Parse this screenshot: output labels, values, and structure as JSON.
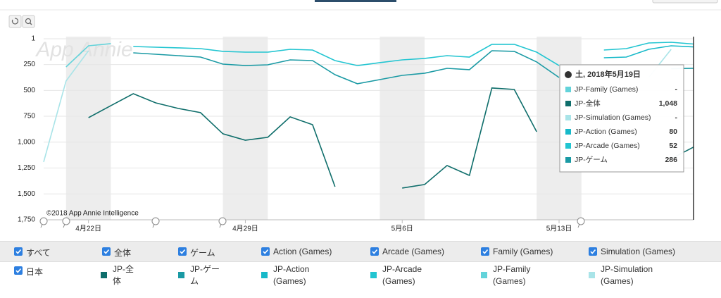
{
  "watermark": "App Annie",
  "credit": "©2018 App Annie Intelligence",
  "chart_data": {
    "type": "line",
    "categories": [
      null,
      null,
      "4月22日",
      null,
      null,
      null,
      null,
      null,
      null,
      "4月29日",
      null,
      null,
      null,
      null,
      null,
      null,
      "5月6日",
      null,
      null,
      null,
      null,
      null,
      null,
      "5月13日",
      null,
      null,
      null,
      null,
      null,
      null
    ],
    "series": [
      {
        "name": "JP-全体",
        "color": "#0f6e6b",
        "values": [
          null,
          null,
          763,
          647,
          532,
          620,
          674,
          715,
          919,
          981,
          953,
          756,
          831,
          1430,
          null,
          null,
          1443,
          1409,
          1225,
          1321,
          477,
          491,
          899,
          null,
          null,
          null,
          null,
          null,
          1160,
          1048
        ]
      },
      {
        "name": "JP-ゲーム",
        "color": "#1a9aa4",
        "values": [
          null,
          null,
          null,
          null,
          137,
          151,
          164,
          178,
          246,
          260,
          253,
          205,
          212,
          348,
          436,
          396,
          355,
          334,
          287,
          300,
          117,
          123,
          225,
          375,
          null,
          null,
          null,
          null,
          290,
          286
        ]
      },
      {
        "name": "JP-Action (Games)",
        "color": "#17b9c9",
        "values": [
          null,
          null,
          null,
          null,
          null,
          null,
          null,
          null,
          null,
          null,
          null,
          null,
          null,
          null,
          null,
          null,
          null,
          null,
          null,
          null,
          null,
          null,
          null,
          null,
          null,
          185,
          178,
          103,
          69,
          80
        ]
      },
      {
        "name": "JP-Arcade (Games)",
        "color": "#22c5d1",
        "values": [
          null,
          null,
          null,
          null,
          76,
          83,
          89,
          96,
          123,
          130,
          130,
          103,
          110,
          212,
          260,
          232,
          205,
          191,
          164,
          178,
          55,
          55,
          130,
          260,
          null,
          110,
          96,
          42,
          35,
          52
        ]
      },
      {
        "name": "JP-Family (Games)",
        "color": "#63d3da",
        "values": [
          null,
          273,
          69,
          48,
          null,
          null,
          null,
          null,
          null,
          null,
          null,
          null,
          null,
          null,
          null,
          null,
          null,
          null,
          null,
          null,
          null,
          null,
          null,
          null,
          null,
          null,
          null,
          null,
          null,
          null
        ]
      },
      {
        "name": "JP-Simulation (Games)",
        "color": "#a9e4e8",
        "values": [
          1191,
          409,
          117,
          null,
          null,
          null,
          null,
          null,
          null,
          null,
          null,
          null,
          null,
          null,
          null,
          null,
          null,
          null,
          null,
          null,
          null,
          null,
          null,
          null,
          null,
          null,
          null,
          375,
          103,
          null
        ]
      }
    ],
    "ylim": [
      1750,
      1
    ],
    "yticks": [
      1,
      250,
      500,
      750,
      {
        "value": 1000,
        "label": "1,000"
      },
      {
        "value": 1250,
        "label": "1,250"
      },
      {
        "value": 1500,
        "label": "1,500"
      },
      {
        "value": 1750,
        "label": "1,750"
      }
    ],
    "grid": true
  },
  "tooltip": {
    "title": "土, 2018年5月19日",
    "rows": [
      {
        "name": "JP-Family (Games)",
        "color": "#63d3da",
        "value": "-"
      },
      {
        "name": "JP-全体",
        "color": "#0f6e6b",
        "value": "1,048"
      },
      {
        "name": "JP-Simulation (Games)",
        "color": "#a9e4e8",
        "value": "-"
      },
      {
        "name": "JP-Action (Games)",
        "color": "#17b9c9",
        "value": "80"
      },
      {
        "name": "JP-Arcade (Games)",
        "color": "#22c5d1",
        "value": "52"
      },
      {
        "name": "JP-ゲーム",
        "color": "#1a9aa4",
        "value": "286"
      }
    ]
  },
  "filters": [
    "すべて",
    "全体",
    "ゲーム",
    "Action (Games)",
    "Arcade (Games)",
    "Family (Games)",
    "Simulation (Games)"
  ],
  "region": "日本"
}
